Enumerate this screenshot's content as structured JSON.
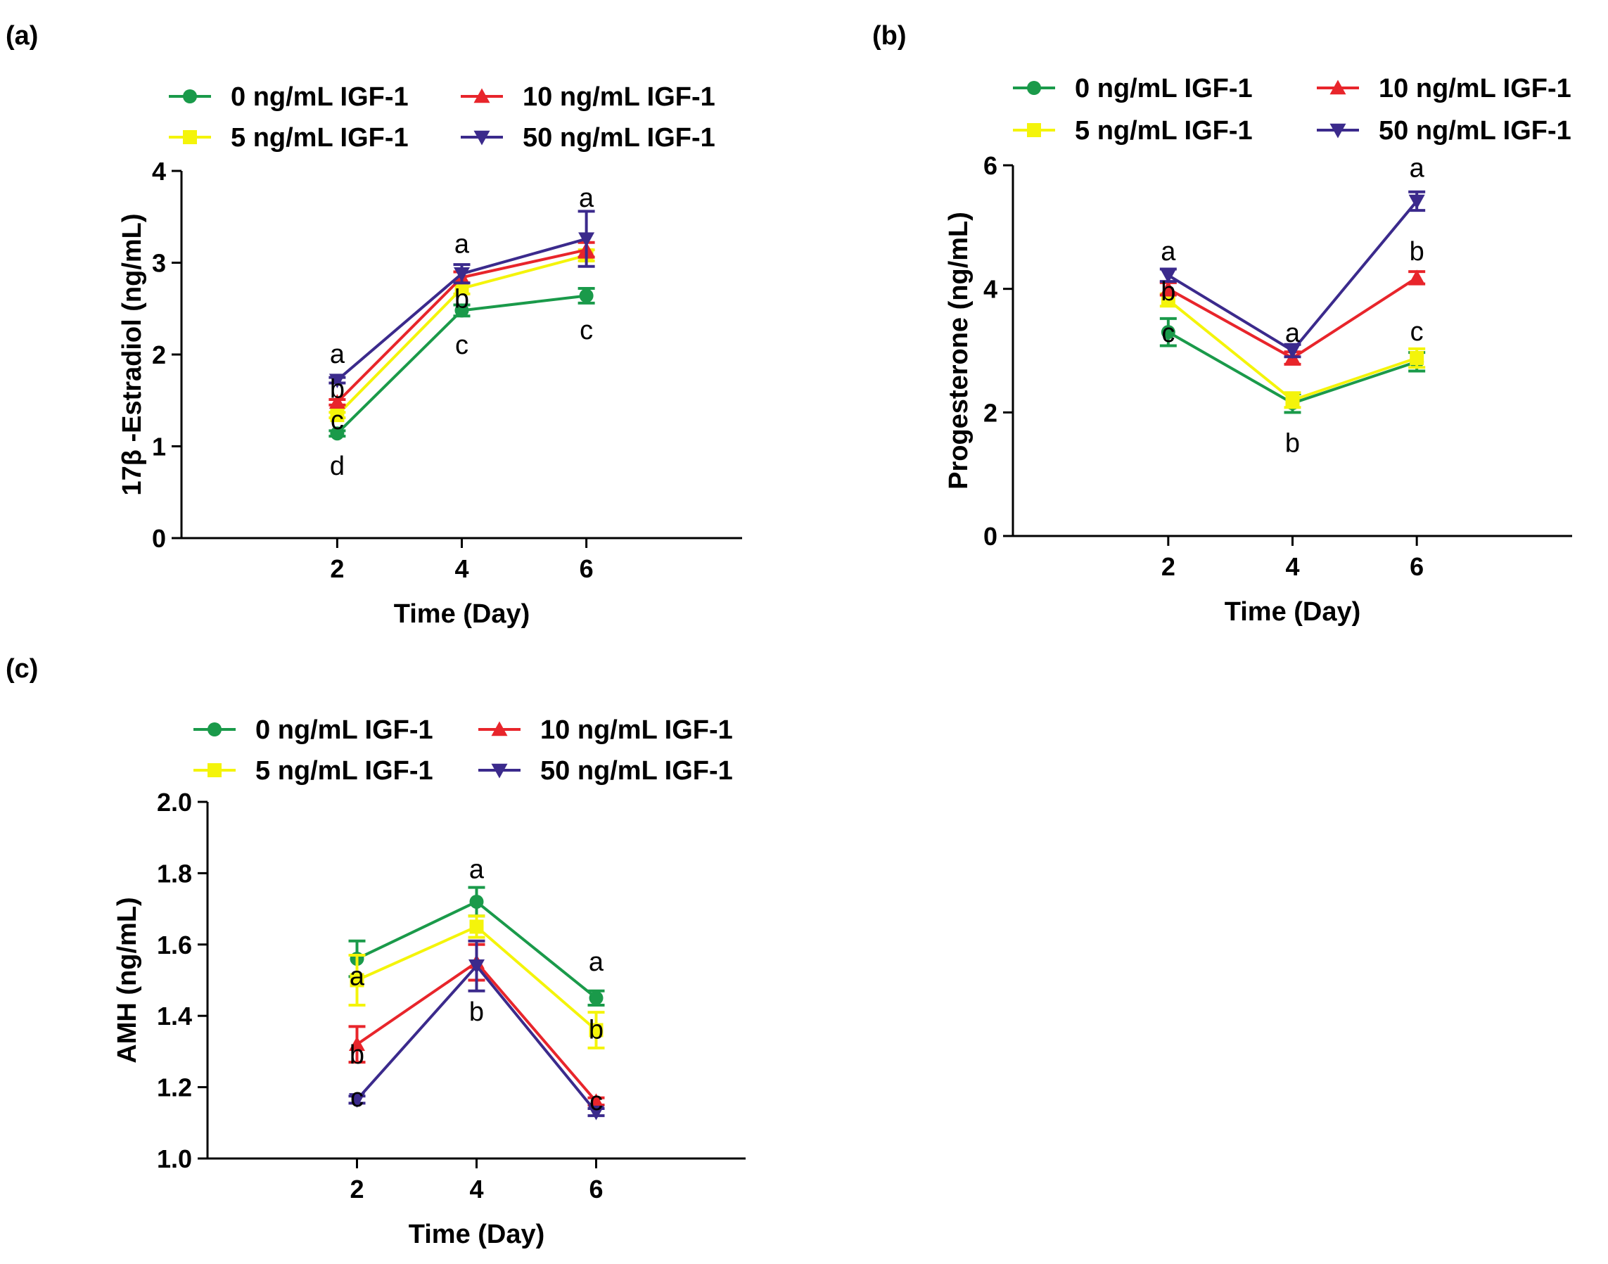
{
  "figure": {
    "legend_entries": [
      "0 ng/mL IGF-1",
      "5 ng/mL IGF-1",
      "10 ng/mL IGF-1",
      "50 ng/mL IGF-1"
    ]
  },
  "colors": {
    "green": "#1a9a4a",
    "yellow": "#f4f40a",
    "red": "#e8252b",
    "purple": "#3b2a8c",
    "axis": "#000000"
  },
  "series_style": [
    {
      "color": "green",
      "marker": "circle-icon"
    },
    {
      "color": "yellow",
      "marker": "square-icon"
    },
    {
      "color": "red",
      "marker": "triangle-up-icon"
    },
    {
      "color": "purple",
      "marker": "triangle-down-icon"
    }
  ],
  "chart_data": [
    {
      "panel_label": "(a)",
      "type": "line",
      "title": "",
      "xlabel": "Time (Day)",
      "ylabel": "17β -Estradiol (ng/mL)",
      "x": [
        2,
        4,
        6
      ],
      "xlim": [
        -0.5,
        8.5
      ],
      "xticks": [
        2,
        4,
        6
      ],
      "ylim": [
        0,
        4
      ],
      "yticks": [
        0,
        1,
        2,
        3,
        4
      ],
      "legend_position": "top",
      "series": [
        {
          "name": "0 ng/mL IGF-1",
          "values": [
            1.14,
            2.48,
            2.64
          ],
          "errors": [
            0.03,
            0.06,
            0.08
          ]
        },
        {
          "name": "5 ng/mL IGF-1",
          "values": [
            1.34,
            2.72,
            3.08
          ],
          "errors": [
            0.03,
            0.06,
            0.06
          ]
        },
        {
          "name": "10 ng/mL IGF-1",
          "values": [
            1.48,
            2.84,
            3.14
          ],
          "errors": [
            0.03,
            0.06,
            0.08
          ]
        },
        {
          "name": "50 ng/mL IGF-1",
          "values": [
            1.72,
            2.88,
            3.26
          ],
          "errors": [
            0.03,
            0.1,
            0.3
          ]
        }
      ],
      "annotations": [
        {
          "text": "a",
          "x": 2,
          "y": 2.0
        },
        {
          "text": "b",
          "x": 2,
          "y": 1.62
        },
        {
          "text": "c",
          "x": 2,
          "y": 1.28
        },
        {
          "text": "d",
          "x": 2,
          "y": 0.78
        },
        {
          "text": "a",
          "x": 4,
          "y": 3.2
        },
        {
          "text": "b",
          "x": 4,
          "y": 2.6
        },
        {
          "text": "c",
          "x": 4,
          "y": 2.1
        },
        {
          "text": "a",
          "x": 6,
          "y": 3.7
        },
        {
          "text": "c",
          "x": 6,
          "y": 2.26
        }
      ]
    },
    {
      "panel_label": "(b)",
      "type": "line",
      "title": "",
      "xlabel": "Time (Day)",
      "ylabel": "Progesterone (ng/mL)",
      "x": [
        2,
        4,
        6
      ],
      "xlim": [
        -0.5,
        8.5
      ],
      "xticks": [
        2,
        4,
        6
      ],
      "ylim": [
        0,
        6
      ],
      "yticks": [
        0,
        2,
        4,
        6
      ],
      "legend_position": "top",
      "series": [
        {
          "name": "0 ng/mL IGF-1",
          "values": [
            3.3,
            2.15,
            2.82
          ],
          "errors": [
            0.22,
            0.15,
            0.15
          ]
        },
        {
          "name": "5 ng/mL IGF-1",
          "values": [
            3.82,
            2.2,
            2.88
          ],
          "errors": [
            0.1,
            0.12,
            0.15
          ]
        },
        {
          "name": "10 ng/mL IGF-1",
          "values": [
            4.0,
            2.88,
            4.18
          ],
          "errors": [
            0.1,
            0.1,
            0.1
          ]
        },
        {
          "name": "50 ng/mL IGF-1",
          "values": [
            4.22,
            3.0,
            5.42
          ],
          "errors": [
            0.1,
            0.1,
            0.15
          ]
        }
      ],
      "annotations": [
        {
          "text": "a",
          "x": 2,
          "y": 4.6
        },
        {
          "text": "b",
          "x": 2,
          "y": 3.95
        },
        {
          "text": "c",
          "x": 2,
          "y": 3.28
        },
        {
          "text": "a",
          "x": 4,
          "y": 3.28
        },
        {
          "text": "b",
          "x": 4,
          "y": 1.5
        },
        {
          "text": "a",
          "x": 6,
          "y": 5.95
        },
        {
          "text": "b",
          "x": 6,
          "y": 4.6
        },
        {
          "text": "c",
          "x": 6,
          "y": 3.3
        }
      ]
    },
    {
      "panel_label": "(c)",
      "type": "line",
      "title": "",
      "xlabel": "Time (Day)",
      "ylabel": "AMH (ng/mL)",
      "x": [
        2,
        4,
        6
      ],
      "xlim": [
        -0.5,
        8.5
      ],
      "xticks": [
        2,
        4,
        6
      ],
      "ylim": [
        1.0,
        2.0
      ],
      "yticks": [
        1.0,
        1.2,
        1.4,
        1.6,
        1.8,
        2.0
      ],
      "legend_position": "top",
      "series": [
        {
          "name": "0 ng/mL IGF-1",
          "values": [
            1.56,
            1.72,
            1.45
          ],
          "errors": [
            0.05,
            0.04,
            0.02
          ]
        },
        {
          "name": "5 ng/mL IGF-1",
          "values": [
            1.5,
            1.65,
            1.36
          ],
          "errors": [
            0.07,
            0.03,
            0.05
          ]
        },
        {
          "name": "10 ng/mL IGF-1",
          "values": [
            1.32,
            1.55,
            1.16
          ],
          "errors": [
            0.05,
            0.05,
            0.01
          ]
        },
        {
          "name": "50 ng/mL IGF-1",
          "values": [
            1.165,
            1.54,
            1.13
          ],
          "errors": [
            0.01,
            0.07,
            0.01
          ]
        }
      ],
      "annotations": [
        {
          "text": "a",
          "x": 2,
          "y": 1.51
        },
        {
          "text": "b",
          "x": 2,
          "y": 1.29
        },
        {
          "text": "c",
          "x": 2,
          "y": 1.17
        },
        {
          "text": "a",
          "x": 4,
          "y": 1.81
        },
        {
          "text": "b",
          "x": 4,
          "y": 1.41
        },
        {
          "text": "a",
          "x": 6,
          "y": 1.55
        },
        {
          "text": "b",
          "x": 6,
          "y": 1.36
        },
        {
          "text": "c",
          "x": 6,
          "y": 1.16
        }
      ]
    }
  ]
}
